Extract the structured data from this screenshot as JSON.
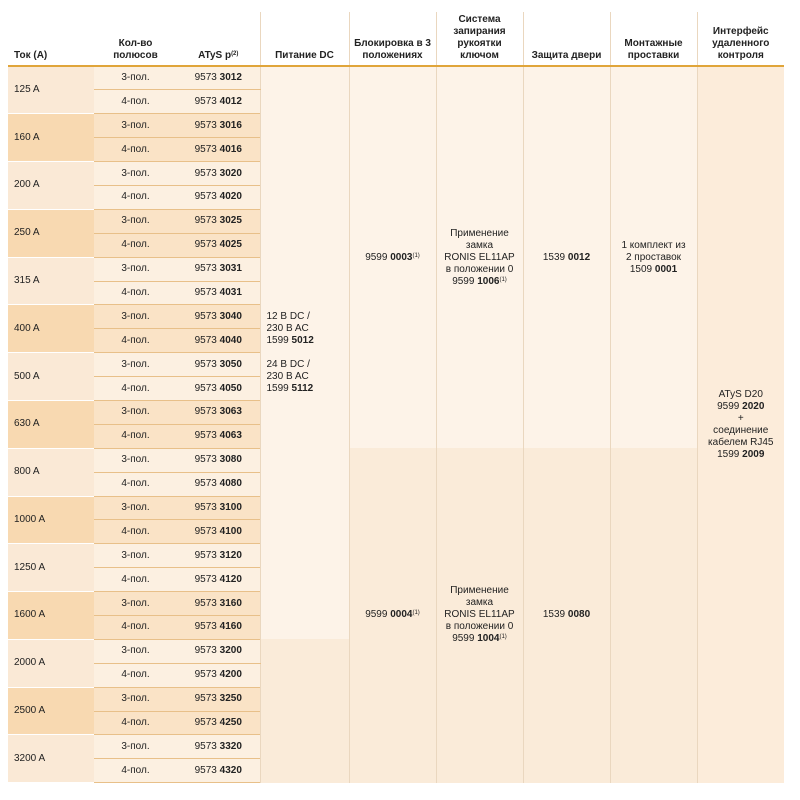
{
  "headers": {
    "current": "Ток (A)",
    "poles": "Кол-во полюсов",
    "atys": "ATyS p",
    "atys_sup": "(2)",
    "dc": "Питание DC",
    "interlock": "Блокировка в 3 положениях",
    "key_lock": "Система запирания рукоятки ключом",
    "door": "Защита двери",
    "spacers": "Монтажные проставки",
    "remote": "Интерфейс удаленного контроля"
  },
  "rows": [
    {
      "current": "125 A",
      "poles": [
        "3-пол.",
        "4-пол."
      ],
      "codes": [
        {
          "prefix": "9573 ",
          "suffix": "3012"
        },
        {
          "prefix": "9573 ",
          "suffix": "4012"
        }
      ]
    },
    {
      "current": "160 A",
      "poles": [
        "3-пол.",
        "4-пол."
      ],
      "codes": [
        {
          "prefix": "9573 ",
          "suffix": "3016"
        },
        {
          "prefix": "9573 ",
          "suffix": "4016"
        }
      ]
    },
    {
      "current": "200 A",
      "poles": [
        "3-пол.",
        "4-пол."
      ],
      "codes": [
        {
          "prefix": "9573 ",
          "suffix": "3020"
        },
        {
          "prefix": "9573 ",
          "suffix": "4020"
        }
      ]
    },
    {
      "current": "250 A",
      "poles": [
        "3-пол.",
        "4-пол."
      ],
      "codes": [
        {
          "prefix": "9573 ",
          "suffix": "3025"
        },
        {
          "prefix": "9573 ",
          "suffix": "4025"
        }
      ]
    },
    {
      "current": "315 A",
      "poles": [
        "3-пол.",
        "4-пол."
      ],
      "codes": [
        {
          "prefix": "9573 ",
          "suffix": "3031"
        },
        {
          "prefix": "9573 ",
          "suffix": "4031"
        }
      ]
    },
    {
      "current": "400 A",
      "poles": [
        "3-пол.",
        "4-пол."
      ],
      "codes": [
        {
          "prefix": "9573 ",
          "suffix": "3040"
        },
        {
          "prefix": "9573 ",
          "suffix": "4040"
        }
      ]
    },
    {
      "current": "500 A",
      "poles": [
        "3-пол.",
        "4-пол."
      ],
      "codes": [
        {
          "prefix": "9573 ",
          "suffix": "3050"
        },
        {
          "prefix": "9573 ",
          "suffix": "4050"
        }
      ]
    },
    {
      "current": "630 A",
      "poles": [
        "3-пол.",
        "4-пол."
      ],
      "codes": [
        {
          "prefix": "9573 ",
          "suffix": "3063"
        },
        {
          "prefix": "9573 ",
          "suffix": "4063"
        }
      ]
    },
    {
      "current": "800 A",
      "poles": [
        "3-пол.",
        "4-пол."
      ],
      "codes": [
        {
          "prefix": "9573 ",
          "suffix": "3080"
        },
        {
          "prefix": "9573 ",
          "suffix": "4080"
        }
      ]
    },
    {
      "current": "1000 A",
      "poles": [
        "3-пол.",
        "4-пол."
      ],
      "codes": [
        {
          "prefix": "9573 ",
          "suffix": "3100"
        },
        {
          "prefix": "9573 ",
          "suffix": "4100"
        }
      ]
    },
    {
      "current": "1250 A",
      "poles": [
        "3-пол.",
        "4-пол."
      ],
      "codes": [
        {
          "prefix": "9573 ",
          "suffix": "3120"
        },
        {
          "prefix": "9573 ",
          "suffix": "4120"
        }
      ]
    },
    {
      "current": "1600 A",
      "poles": [
        "3-пол.",
        "4-пол."
      ],
      "codes": [
        {
          "prefix": "9573 ",
          "suffix": "3160"
        },
        {
          "prefix": "9573 ",
          "suffix": "4160"
        }
      ]
    },
    {
      "current": "2000 A",
      "poles": [
        "3-пол.",
        "4-пол."
      ],
      "codes": [
        {
          "prefix": "9573 ",
          "suffix": "3200"
        },
        {
          "prefix": "9573 ",
          "suffix": "4200"
        }
      ]
    },
    {
      "current": "2500 A",
      "poles": [
        "3-пол.",
        "4-пол."
      ],
      "codes": [
        {
          "prefix": "9573 ",
          "suffix": "3250"
        },
        {
          "prefix": "9573 ",
          "suffix": "4250"
        }
      ]
    },
    {
      "current": "3200 A",
      "poles": [
        "3-пол.",
        "4-пол."
      ],
      "codes": [
        {
          "prefix": "9573 ",
          "suffix": "3320"
        },
        {
          "prefix": "9573 ",
          "suffix": "4320"
        }
      ]
    }
  ],
  "dc_power": {
    "line1": "12 B DC /",
    "line2": "230 B AC",
    "code1_prefix": "1599 ",
    "code1_suffix": "5012",
    "line3": "24 B DC /",
    "line4": "230 B AC",
    "code2_prefix": "1599 ",
    "code2_suffix": "5112"
  },
  "interlock": {
    "upper": {
      "prefix": "9599 ",
      "suffix": "0003",
      "sup": "(1)"
    },
    "lower": {
      "prefix": "9599 ",
      "suffix": "0004",
      "sup": "(1)"
    }
  },
  "key_lock": {
    "upper": {
      "l1": "Применение",
      "l2": "замка",
      "l3": "RONIS EL11AP",
      "l4": "в положении 0",
      "prefix": "9599 ",
      "suffix": "1006",
      "sup": "(1)"
    },
    "lower": {
      "l1": "Применение",
      "l2": "замка",
      "l3": "RONIS EL11AP",
      "l4": "в положении 0",
      "prefix": "9599 ",
      "suffix": "1004",
      "sup": "(1)"
    }
  },
  "door": {
    "upper": {
      "prefix": "1539 ",
      "suffix": "0012"
    },
    "lower": {
      "prefix": "1539 ",
      "suffix": "0080"
    }
  },
  "spacers": {
    "l1": "1 комплект из",
    "l2": "2 проставок",
    "prefix": "1509 ",
    "suffix": "0001"
  },
  "remote": {
    "l1": "ATyS D20",
    "c1_prefix": "9599 ",
    "c1_suffix": "2020",
    "l2": "+",
    "l3": "соединение",
    "l4": "кабелем RJ45",
    "c2_prefix": "1599 ",
    "c2_suffix": "2009"
  }
}
